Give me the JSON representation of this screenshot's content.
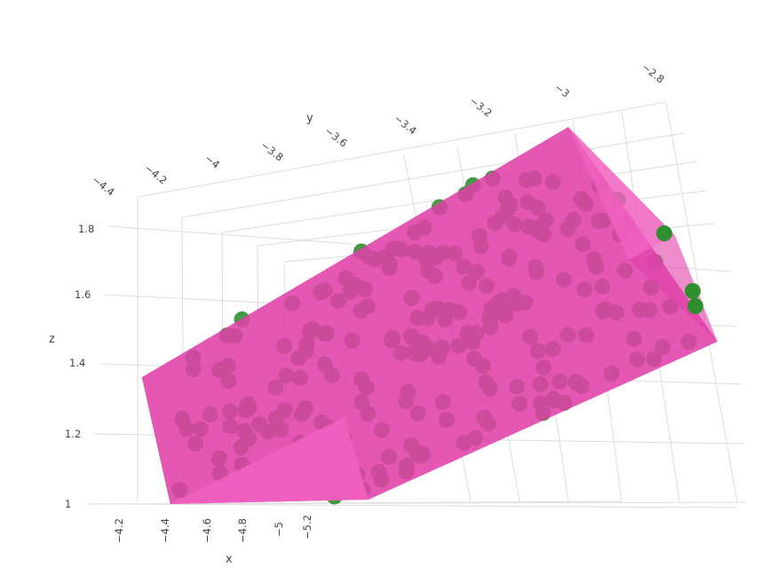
{
  "chart_data": {
    "type": "scatter3d",
    "title": "",
    "axes": {
      "x": {
        "title": "x",
        "ticks": [
          "−4.2",
          "−4.4",
          "−4.6",
          "−4.8",
          "−5",
          "−5.2"
        ]
      },
      "y": {
        "title": "y",
        "ticks": [
          "−4.4",
          "−4.2",
          "−4",
          "−3.8",
          "−3.6",
          "−3.4",
          "−3.2",
          "−3",
          "−2.8"
        ]
      },
      "z": {
        "title": "z",
        "ticks": [
          "1",
          "1.2",
          "1.4",
          "1.6",
          "1.8"
        ]
      }
    },
    "grid": true,
    "legend": "none",
    "colors": {
      "points": "#2f8f2f",
      "hull_face": "#e040a8",
      "hull_face_light": "#f060c0",
      "gridline": "#dddddd",
      "axis_text": "#444444"
    },
    "series": [
      {
        "type": "scatter3d",
        "marker": "circle"
      },
      {
        "type": "mesh3d",
        "opacity": 0.85
      }
    ]
  }
}
